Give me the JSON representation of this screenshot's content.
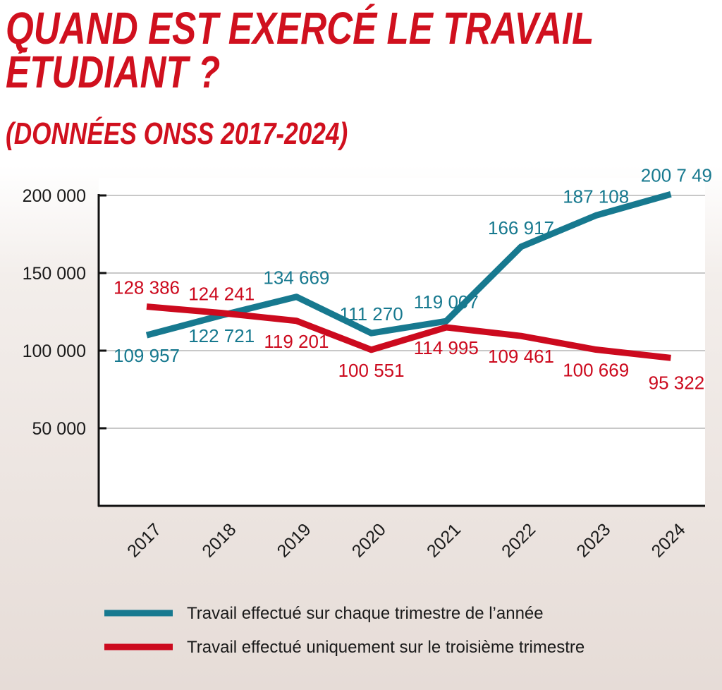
{
  "title_line1": "QUAND EST EXERCÉ LE TRAVAIL",
  "title_line2": "ÉTUDIANT ?",
  "subtitle": "(DONNÉES ONSS 2017-2024)",
  "colors": {
    "title": "#d0101e",
    "series_all": "#17798f",
    "series_q3": "#cc0a1e"
  },
  "chart_data": {
    "type": "line",
    "title": "QUAND EST EXERCÉ LE TRAVAIL ÉTUDIANT ? (DONNÉES ONSS 2017-2024)",
    "categories": [
      "2017",
      "2018",
      "2019",
      "2020",
      "2021",
      "2022",
      "2023",
      "2024"
    ],
    "ylim": [
      0,
      200000
    ],
    "yticks": [
      50000,
      100000,
      150000,
      200000
    ],
    "ytick_labels": [
      "50 000",
      "100 000",
      "150 000",
      "200 000"
    ],
    "grid": true,
    "legend_position": "bottom",
    "series": [
      {
        "name": "Travail effectué sur chaque trimestre de l’année",
        "values": [
          109957,
          122721,
          134669,
          111270,
          119007,
          166917,
          187108,
          200749
        ],
        "labels": [
          "109 957",
          "122 721",
          "134 669",
          "111 270",
          "119 007",
          "166 917",
          "187 108",
          "200 7 49"
        ]
      },
      {
        "name": "Travail effectué uniquement sur le troisième trimestre",
        "values": [
          128386,
          124241,
          119201,
          100551,
          114995,
          109461,
          100669,
          95322
        ],
        "labels": [
          "128 386",
          "124 241",
          "119 201",
          "100 551",
          "114 995",
          "109 461",
          "100 669",
          "95 322"
        ]
      }
    ]
  }
}
